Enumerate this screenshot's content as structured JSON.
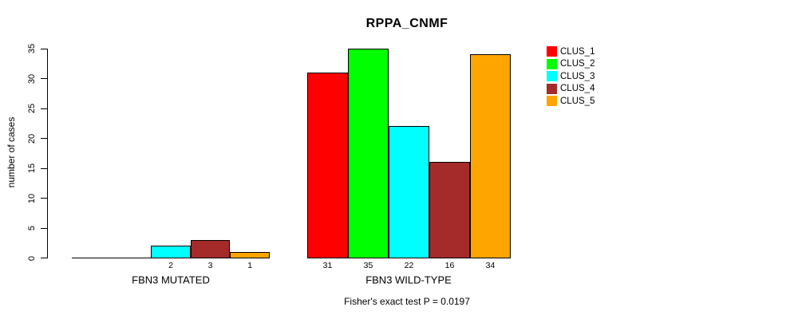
{
  "chart_data": {
    "type": "bar",
    "title": "RPPA_CNMF",
    "ylabel": "number of cases",
    "xlabel": "",
    "ylim": [
      0,
      35
    ],
    "yticks": [
      0,
      5,
      10,
      15,
      20,
      25,
      30,
      35
    ],
    "categories": [
      "FBN3 MUTATED",
      "FBN3 WILD-TYPE"
    ],
    "series": [
      {
        "name": "CLUS_1",
        "color": "#FF0000",
        "values": [
          0,
          31
        ]
      },
      {
        "name": "CLUS_2",
        "color": "#00FF00",
        "values": [
          0,
          35
        ]
      },
      {
        "name": "CLUS_3",
        "color": "#00FFFF",
        "values": [
          2,
          22
        ]
      },
      {
        "name": "CLUS_4",
        "color": "#A52A2A",
        "values": [
          3,
          16
        ]
      },
      {
        "name": "CLUS_5",
        "color": "#FFA500",
        "values": [
          1,
          34
        ]
      }
    ],
    "bar_value_labels": {
      "show_zero": false
    },
    "legend_position": "right",
    "grid": false,
    "footnote": "Fisher's exact test P = 0.0197",
    "axis_color": "#000000",
    "background_color": "#FFFFFF"
  }
}
